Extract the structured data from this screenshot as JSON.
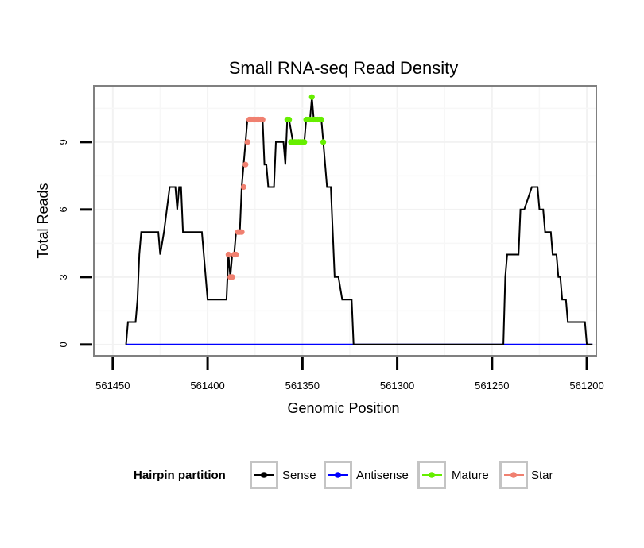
{
  "chart_data": {
    "type": "line",
    "title": "Small RNA-seq Read Density",
    "xlabel": "Genomic Position",
    "ylabel": "Total Reads",
    "x_reversed": true,
    "xlim": [
      561460,
      561195
    ],
    "ylim": [
      -0.5,
      11.5
    ],
    "x_ticks": [
      561450,
      561400,
      561350,
      561300,
      561250,
      561200
    ],
    "y_ticks": [
      0,
      3,
      6,
      9
    ],
    "grid": true,
    "legend": {
      "title": "Hairpin partition",
      "placement": "bottom",
      "entries": [
        {
          "key": "sense",
          "label": "Sense",
          "color": "#000000"
        },
        {
          "key": "antisense",
          "label": "Antisense",
          "color": "#0000ff"
        },
        {
          "key": "mature",
          "label": "Mature",
          "color": "#66ee00"
        },
        {
          "key": "star",
          "label": "Star",
          "color": "#f08070"
        }
      ]
    },
    "series": {
      "sense": {
        "x": [
          561443,
          561442,
          561441,
          561438,
          561437,
          561436,
          561435,
          561426,
          561425,
          561423,
          561420,
          561417,
          561416,
          561415,
          561414,
          561413,
          561412,
          561411,
          561410,
          561403,
          561402,
          561400,
          561390,
          561389,
          561388,
          561387,
          561386,
          561385,
          561384,
          561383,
          561382,
          561381,
          561380,
          561379,
          561378,
          561372,
          561371,
          561370,
          561369,
          561368,
          561367,
          561365,
          561364,
          561360,
          561359,
          561358,
          561357,
          561355,
          561353,
          561349,
          561348,
          561346,
          561345,
          561344,
          561340,
          561339,
          561337,
          561335,
          561334,
          561333,
          561331,
          561329,
          561324,
          561323,
          561244,
          561243,
          561242,
          561240,
          561236,
          561235,
          561233,
          561229,
          561228,
          561226,
          561225,
          561223,
          561222,
          561220,
          561219,
          561218,
          561216,
          561215,
          561214,
          561213,
          561211,
          561210,
          561202,
          561201,
          561200,
          561197
        ],
        "y": [
          0,
          1,
          1,
          1,
          2,
          4,
          5,
          5,
          4,
          5,
          7,
          7,
          6,
          7,
          7,
          5,
          5,
          5,
          5,
          5,
          4,
          2,
          2,
          4,
          3,
          4,
          4,
          5,
          5,
          5,
          7,
          8,
          9,
          10,
          10,
          10,
          10,
          8,
          8,
          7,
          7,
          7,
          9,
          9,
          8,
          10,
          10,
          9,
          9,
          9,
          10,
          10,
          11,
          10,
          10,
          9,
          7,
          7,
          5,
          3,
          3,
          2,
          2,
          0,
          0,
          3,
          4,
          4,
          4,
          6,
          6,
          7,
          7,
          7,
          6,
          6,
          5,
          5,
          5,
          4,
          4,
          3,
          3,
          2,
          2,
          1,
          1,
          1,
          0,
          0
        ]
      },
      "antisense": {
        "x": [
          561443,
          561197
        ],
        "y": [
          0,
          0
        ]
      },
      "mature": {
        "x": [
          561358,
          561357,
          561356,
          561355,
          561354,
          561353,
          561352,
          561351,
          561350,
          561349,
          561348,
          561347,
          561346,
          561345,
          561344,
          561343,
          561342,
          561341,
          561340,
          561339
        ],
        "y": [
          10,
          10,
          9,
          9,
          9,
          9,
          9,
          9,
          9,
          9,
          10,
          10,
          10,
          11,
          10,
          10,
          10,
          10,
          10,
          9
        ]
      },
      "star": {
        "x": [
          561389,
          561388,
          561387,
          561386,
          561385,
          561384,
          561383,
          561382,
          561381,
          561380,
          561379,
          561378,
          561377,
          561376,
          561375,
          561374,
          561373,
          561372,
          561371
        ],
        "y": [
          4,
          3,
          3,
          4,
          4,
          5,
          5,
          5,
          7,
          8,
          9,
          10,
          10,
          10,
          10,
          10,
          10,
          10,
          10
        ]
      }
    }
  }
}
